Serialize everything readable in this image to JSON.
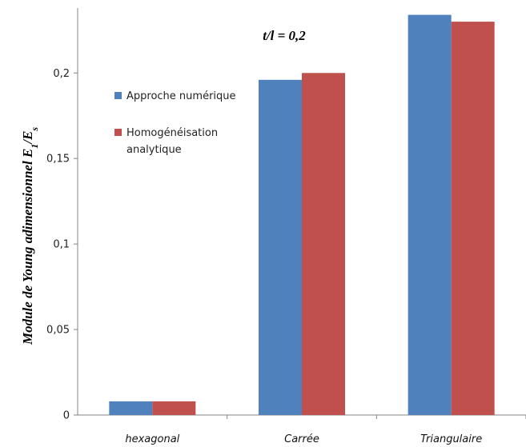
{
  "chart_data": {
    "type": "bar",
    "categories": [
      "hexagonal",
      "Carrée",
      "Triangulaire"
    ],
    "series": [
      {
        "name": "Approche numérique",
        "values": [
          0.008,
          0.196,
          0.234
        ],
        "color": "#4F81BD"
      },
      {
        "name": "Homogénéisation analytique",
        "values": [
          0.008,
          0.2,
          0.23
        ],
        "color": "#C0504D"
      }
    ],
    "legend_lines": [
      [
        "Approche numérique"
      ],
      [
        "Homogénéisation",
        "analytique"
      ]
    ],
    "ylabel": "Module de Young adimensionnel E",
    "ylabel_sub1": "1",
    "ylabel_mid": "/E",
    "ylabel_sub2": "s",
    "annotation": "t/l = 0,2",
    "yticks": [
      0,
      0.05,
      0.1,
      0.15,
      0.2
    ],
    "ytick_labels": [
      "0",
      "0,05",
      "0,1",
      "0,15",
      "0,2"
    ],
    "ylim": [
      0,
      0.238
    ],
    "grid": false,
    "legend_position": "left, inside plot"
  }
}
